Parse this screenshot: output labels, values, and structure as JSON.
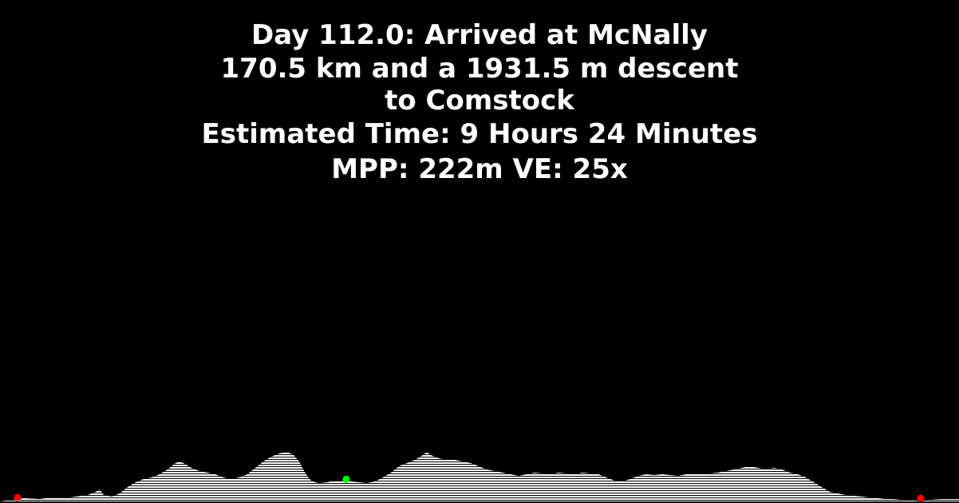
{
  "header": {
    "line1": "Day 112.0: Arrived at McNally",
    "line2": "170.5 km and a 1931.5 m descent",
    "line3": "to Comstock",
    "line4": "Estimated Time: 9 Hours 24 Minutes",
    "line5": "MPP: 222m VE: 25x"
  },
  "colors": {
    "background": "#000000",
    "text": "#ffffff",
    "profile_fill": "#ffffff",
    "hatch_line": "#000000",
    "endpoint_marker": "#ff0000",
    "current_position_marker": "#00ff00"
  },
  "chart_data": {
    "type": "area",
    "title": "Day 112.0: Arrived at McNally",
    "xlabel": "",
    "ylabel": "",
    "grid": false,
    "legend": "none",
    "fill_style": "horizontal-hatch",
    "x": [
      0,
      30,
      50,
      65,
      80,
      95,
      110,
      120,
      125,
      130,
      140,
      150,
      160,
      170,
      180,
      190,
      200,
      210,
      220,
      225,
      230,
      240,
      250,
      260,
      270,
      280,
      290,
      300,
      310,
      320,
      330,
      340,
      350,
      360,
      368,
      375,
      380,
      385,
      390,
      395,
      400,
      410,
      420,
      430,
      435,
      440,
      450,
      460,
      470,
      480,
      490,
      500,
      510,
      520,
      530,
      535,
      540,
      550,
      560,
      570,
      580,
      590,
      600,
      610,
      620,
      630,
      640,
      650,
      660,
      670,
      680,
      690,
      700,
      710,
      720,
      730,
      740,
      750,
      760,
      770,
      780,
      790,
      800,
      810,
      820,
      830,
      840,
      850,
      860,
      870,
      880,
      890,
      900,
      910,
      920,
      930,
      940,
      950,
      960,
      970,
      980,
      990,
      1000,
      1010,
      1020,
      1030,
      1040,
      1050,
      1060,
      1070,
      1080,
      1090,
      1100,
      1110,
      1120,
      1130,
      1140,
      1154,
      1165,
      1180,
      1202
    ],
    "y": [
      0,
      4,
      3,
      5,
      4,
      6,
      8,
      12,
      15,
      8,
      6,
      10,
      18,
      24,
      28,
      30,
      34,
      40,
      48,
      50,
      48,
      42,
      38,
      36,
      34,
      30,
      28,
      30,
      34,
      42,
      50,
      56,
      60,
      62,
      58,
      50,
      40,
      32,
      26,
      24,
      23,
      24,
      26,
      25,
      26,
      25,
      24,
      23,
      25,
      30,
      36,
      44,
      48,
      52,
      58,
      62,
      58,
      54,
      52,
      52,
      50,
      48,
      44,
      40,
      38,
      36,
      34,
      32,
      34,
      36,
      35,
      34,
      36,
      35,
      34,
      36,
      35,
      34,
      30,
      26,
      25,
      28,
      32,
      34,
      33,
      34,
      33,
      32,
      34,
      35,
      34,
      35,
      36,
      38,
      40,
      42,
      44,
      42,
      40,
      42,
      40,
      36,
      34,
      30,
      24,
      18,
      12,
      10,
      8,
      7,
      6,
      5,
      4,
      3,
      3,
      2,
      2,
      0,
      2,
      3,
      3
    ],
    "markers": [
      {
        "x": 22,
        "kind": "start"
      },
      {
        "x": 434,
        "kind": "current"
      },
      {
        "x": 1154,
        "kind": "end"
      }
    ]
  }
}
